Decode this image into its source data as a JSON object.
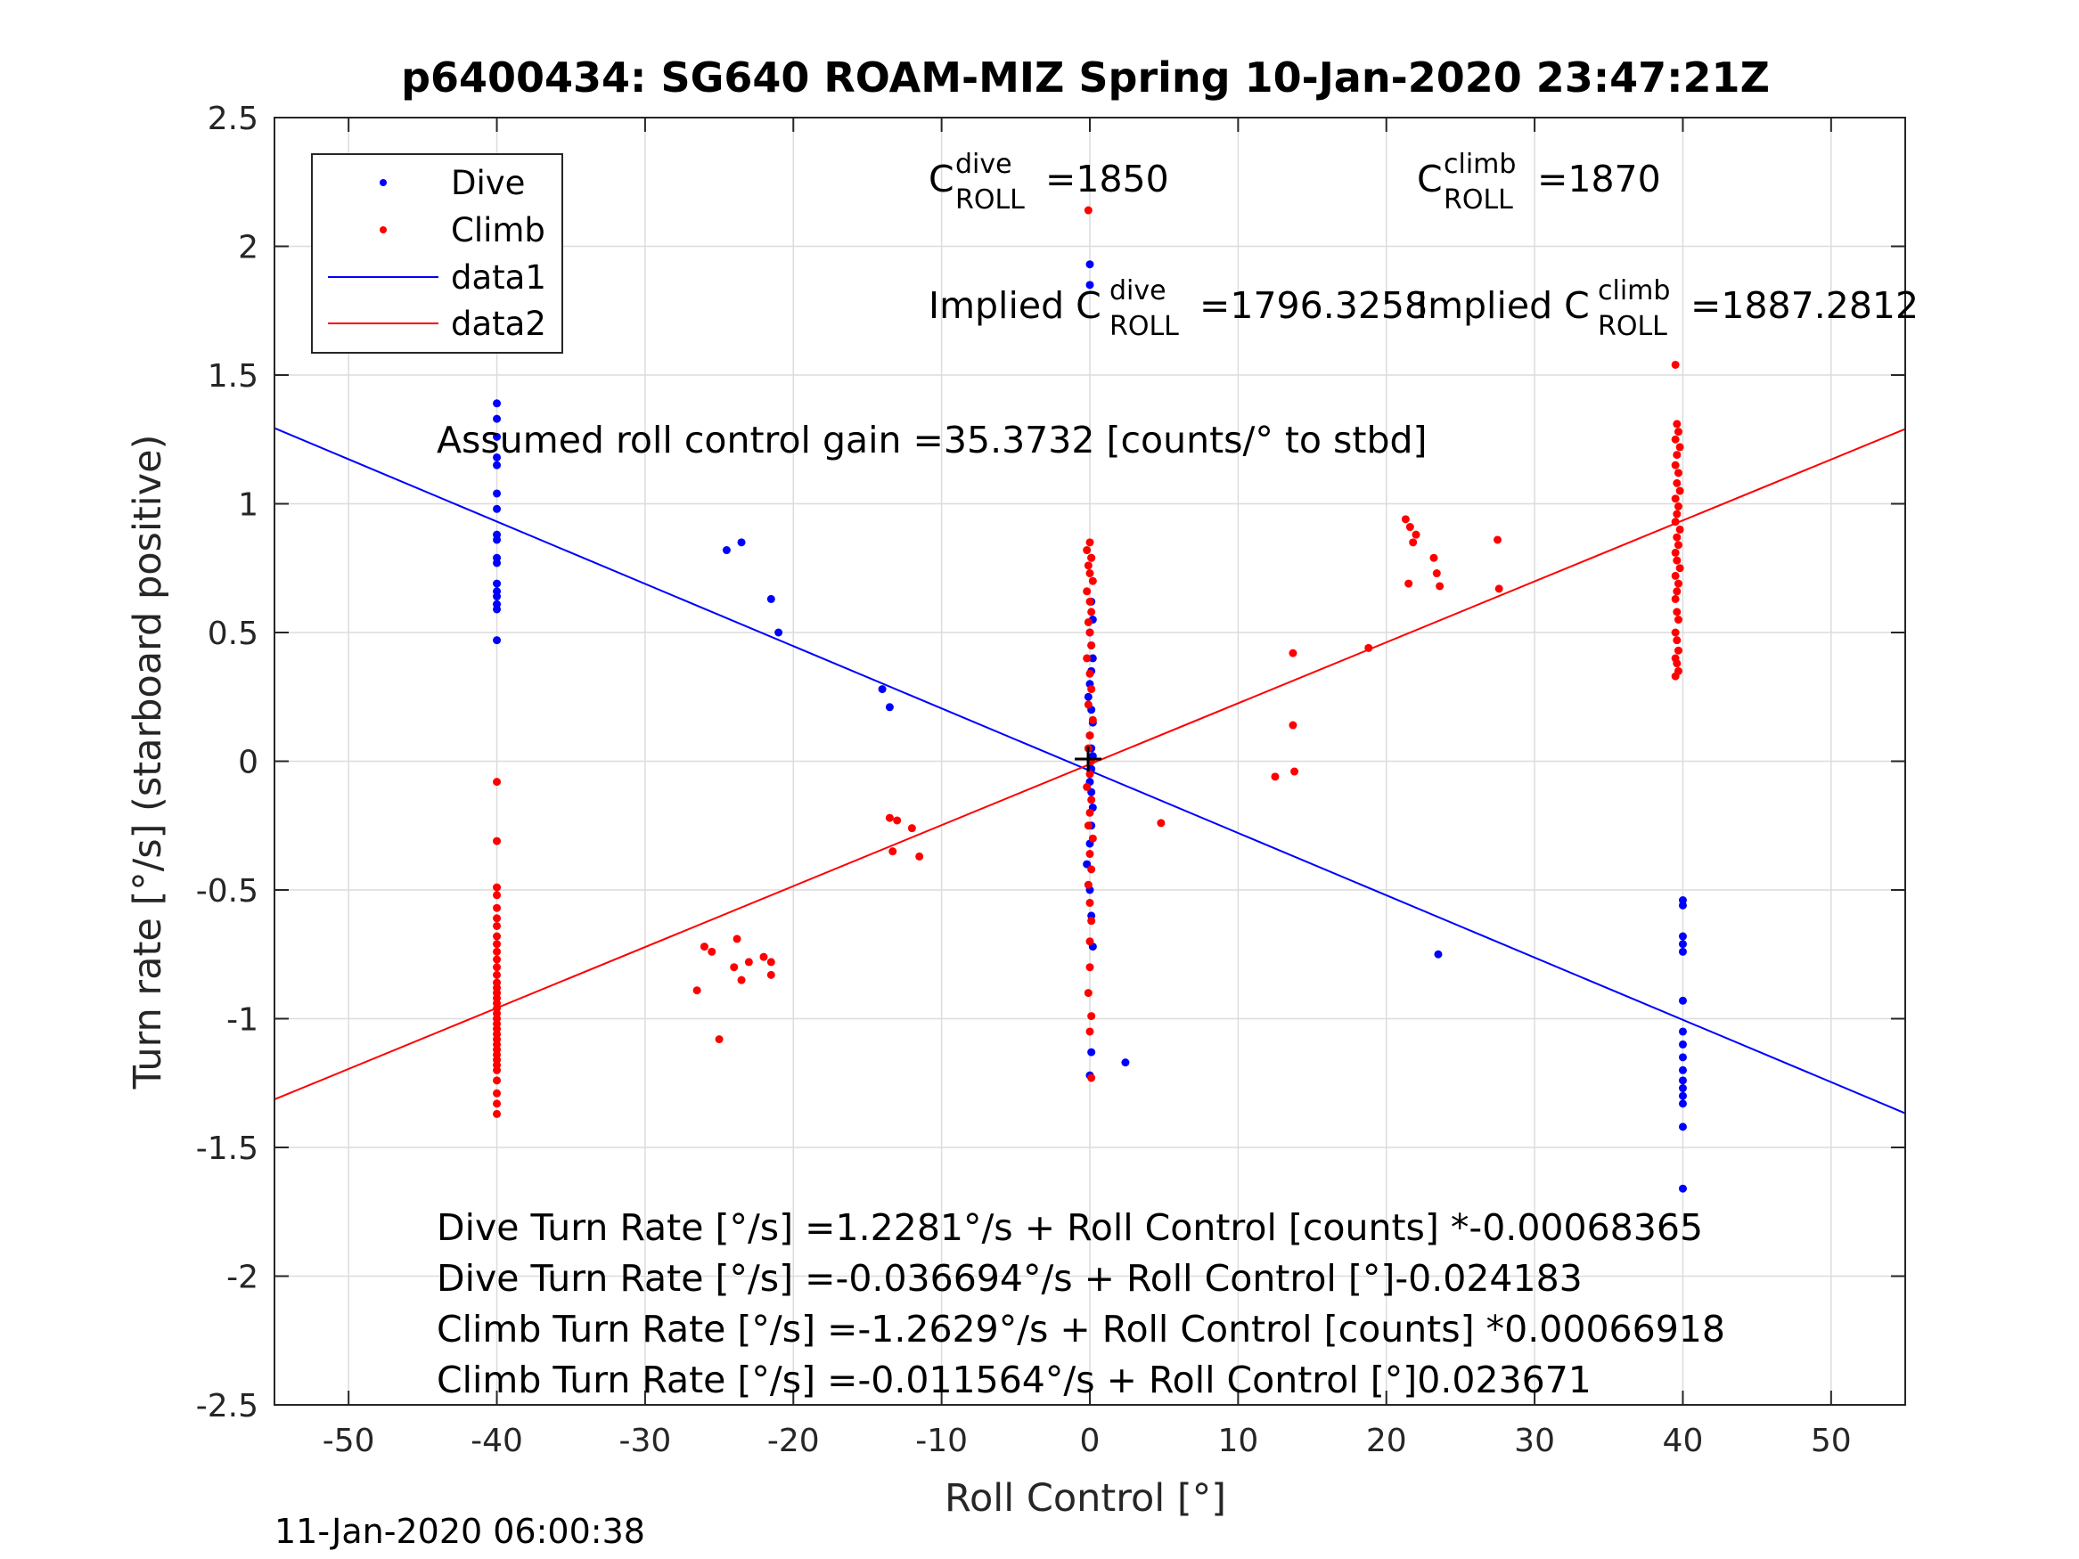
{
  "chart_data": {
    "type": "scatter",
    "title": "p6400434: SG640 ROAM-MIZ Spring 10-Jan-2020 23:47:21Z",
    "xlabel": "Roll Control [°]",
    "ylabel": "Turn rate [°/s] (starboard positive)",
    "xlim": [
      -55,
      55
    ],
    "ylim": [
      -2.5,
      2.5
    ],
    "grid": true,
    "legend_position": "top-left",
    "xticks": [
      -50,
      -40,
      -30,
      -20,
      -10,
      0,
      10,
      20,
      30,
      40,
      50
    ],
    "xtick_labels": [
      "-50",
      "-40",
      "-30",
      "-20",
      "-10",
      "0",
      "10",
      "20",
      "30",
      "40",
      "50"
    ],
    "yticks": [
      -2.5,
      -2,
      -1.5,
      -1,
      -0.5,
      0,
      0.5,
      1,
      1.5,
      2,
      2.5
    ],
    "ytick_labels": [
      "-2.5",
      "-2",
      "-1.5",
      "-1",
      "-0.5",
      "0",
      "0.5",
      "1",
      "1.5",
      "2",
      "2.5"
    ],
    "legend": [
      "Dive",
      "Climb",
      "data1",
      "data2"
    ],
    "colors": {
      "dive": "#0000ff",
      "climb": "#ff0000",
      "grid": "#dcdcdc",
      "axes": "#262626"
    },
    "series": [
      {
        "name": "Dive",
        "mode": "markers",
        "color": "#0000ff",
        "x": [
          -40,
          -40,
          -40,
          -40,
          -40,
          -40,
          -40,
          -40,
          -40,
          -40,
          -40,
          -40,
          -40,
          -40,
          -40,
          -40,
          -40,
          -24.5,
          -23.5,
          -21.5,
          -21,
          -14,
          -13.5,
          0,
          0,
          0.1,
          0.1,
          0.2,
          0,
          0.1,
          0.2,
          0.1,
          0,
          -0.1,
          0.1,
          0.2,
          0,
          0.1,
          0.2,
          0.1,
          0,
          0.1,
          0.2,
          0.1,
          0,
          -0.2,
          0,
          0.1,
          0.2,
          0,
          0.1,
          2.4,
          23.5,
          40,
          40,
          40,
          40,
          40,
          40,
          40,
          40,
          40,
          40,
          40,
          40,
          40,
          40,
          40,
          40
        ],
        "y": [
          1.39,
          1.33,
          1.26,
          1.18,
          1.15,
          1.04,
          0.98,
          0.88,
          0.86,
          0.79,
          0.77,
          0.69,
          0.66,
          0.64,
          0.61,
          0.59,
          0.47,
          0.82,
          0.85,
          0.63,
          0.5,
          0.28,
          0.21,
          1.93,
          1.85,
          0.79,
          0.62,
          0.55,
          0.5,
          0.45,
          0.4,
          0.35,
          0.3,
          0.25,
          0.2,
          0.15,
          0.1,
          0.05,
          0.02,
          -0.03,
          -0.08,
          -0.12,
          -0.18,
          -0.25,
          -0.32,
          -0.4,
          -0.5,
          -0.6,
          -0.72,
          -1.22,
          -1.13,
          -1.17,
          -0.75,
          -0.54,
          -0.56,
          -0.68,
          -0.71,
          -0.74,
          -0.93,
          -1.05,
          -1.1,
          -1.15,
          -1.2,
          -1.24,
          -1.27,
          -1.3,
          -1.33,
          -1.42,
          -1.66
        ]
      },
      {
        "name": "Climb",
        "mode": "markers",
        "color": "#ff0000",
        "x": [
          -40,
          -40,
          -40,
          -40,
          -40,
          -40,
          -40,
          -40,
          -40,
          -40,
          -40,
          -40,
          -40,
          -40,
          -40,
          -40,
          -40,
          -40,
          -40,
          -40,
          -40,
          -40,
          -40,
          -40,
          -40,
          -40,
          -40,
          -40,
          -40,
          -40,
          -40,
          -40,
          -40,
          -40,
          -40,
          -26.5,
          -26,
          -25.5,
          -25,
          -24,
          -23.8,
          -23.5,
          -23,
          -22,
          -21.5,
          -21.5,
          -13.5,
          -13.3,
          -13,
          -12,
          -11.5,
          -0.1,
          0,
          -0.2,
          0.1,
          -0.1,
          0,
          0.2,
          -0.2,
          0,
          0.1,
          -0.1,
          0,
          0.1,
          -0.2,
          0,
          0.1,
          -0.1,
          0.2,
          0,
          -0.1,
          0.1,
          0,
          -0.2,
          0.1,
          0,
          -0.1,
          0.2,
          0,
          0.1,
          -0.1,
          0,
          0.1,
          0,
          0,
          -0.1,
          0.1,
          0,
          0.1,
          4.8,
          12.5,
          13.7,
          13.7,
          13.8,
          18.8,
          21.3,
          21.5,
          21.6,
          21.8,
          22,
          23.2,
          23.4,
          23.6,
          27.5,
          27.6,
          39.5,
          39.6,
          39.7,
          39.5,
          39.8,
          39.6,
          39.5,
          39.7,
          39.6,
          39.8,
          39.5,
          39.7,
          39.6,
          39.5,
          39.8,
          39.6,
          39.7,
          39.5,
          39.6,
          39.8,
          39.5,
          39.7,
          39.6,
          39.5,
          39.6,
          39.7,
          39.5,
          39.6,
          39.7,
          39.5,
          39.6,
          39.7,
          39.5
        ],
        "y": [
          -0.08,
          -0.31,
          -0.49,
          -0.52,
          -0.57,
          -0.61,
          -0.64,
          -0.68,
          -0.71,
          -0.74,
          -0.77,
          -0.8,
          -0.83,
          -0.86,
          -0.88,
          -0.9,
          -0.92,
          -0.94,
          -0.96,
          -0.98,
          -1.0,
          -1.02,
          -1.04,
          -1.06,
          -1.08,
          -1.1,
          -1.12,
          -1.14,
          -1.16,
          -1.18,
          -1.2,
          -1.24,
          -1.29,
          -1.33,
          -1.37,
          -0.89,
          -0.72,
          -0.74,
          -1.08,
          -0.8,
          -0.69,
          -0.85,
          -0.78,
          -0.76,
          -0.78,
          -0.83,
          -0.22,
          -0.35,
          -0.23,
          -0.26,
          -0.37,
          2.14,
          0.85,
          0.82,
          0.79,
          0.76,
          0.73,
          0.7,
          0.66,
          0.62,
          0.58,
          0.54,
          0.5,
          0.45,
          0.4,
          0.34,
          0.28,
          0.22,
          0.16,
          0.1,
          0.05,
          0.0,
          -0.05,
          -0.1,
          -0.15,
          -0.2,
          -0.25,
          -0.3,
          -0.36,
          -0.42,
          -0.48,
          -0.55,
          -0.62,
          -0.7,
          -0.8,
          -0.9,
          -0.99,
          -1.05,
          -1.23,
          -0.24,
          -0.06,
          0.42,
          0.14,
          -0.04,
          0.44,
          0.94,
          0.69,
          0.91,
          0.85,
          0.88,
          0.79,
          0.73,
          0.68,
          0.86,
          0.67,
          1.54,
          1.31,
          1.28,
          1.25,
          1.22,
          1.19,
          1.15,
          1.12,
          1.08,
          1.05,
          1.02,
          0.99,
          0.96,
          0.93,
          0.9,
          0.87,
          0.84,
          0.81,
          0.78,
          0.75,
          0.72,
          0.69,
          0.66,
          0.63,
          0.58,
          0.55,
          0.5,
          0.47,
          0.43,
          0.4,
          0.38,
          0.35,
          0.33
        ]
      },
      {
        "name": "data1",
        "mode": "line",
        "color": "#0000ff",
        "x": [
          -55,
          55
        ],
        "y": [
          1.2939,
          -1.3673
        ]
      },
      {
        "name": "data2",
        "mode": "line",
        "color": "#ff0000",
        "x": [
          -55,
          55
        ],
        "y": [
          -1.3135,
          1.2904
        ]
      }
    ]
  },
  "annotations": {
    "c_dive_main": "C",
    "c_dive_sup": "dive",
    "c_dive_sub": "ROLL",
    "c_dive_val": " =1850",
    "c_climb_main": "C",
    "c_climb_sup": "climb",
    "c_climb_sub": "ROLL",
    "c_climb_val": " =1870",
    "implied_dive_main": "Implied C",
    "implied_dive_sup": "dive",
    "implied_dive_sub": "ROLL",
    "implied_dive_val": " =1796.3258",
    "implied_climb_main": "Implied C",
    "implied_climb_sup": "climb",
    "implied_climb_sub": "ROLL",
    "implied_climb_val": " =1887.2812",
    "gain": "Assumed roll control gain =35.3732 [counts/° to stbd]",
    "eq1": "Dive Turn Rate [°/s] =1.2281°/s + Roll Control [counts] *-0.00068365",
    "eq2": "Dive Turn Rate [°/s] =-0.036694°/s + Roll Control [°]-0.024183",
    "eq3": "Climb Turn Rate [°/s] =-1.2629°/s + Roll Control [counts] *0.00066918",
    "eq4": "Climb Turn Rate [°/s] =-0.011564°/s + Roll Control [°]0.023671"
  },
  "timestamp": "11-Jan-2020 06:00:38"
}
